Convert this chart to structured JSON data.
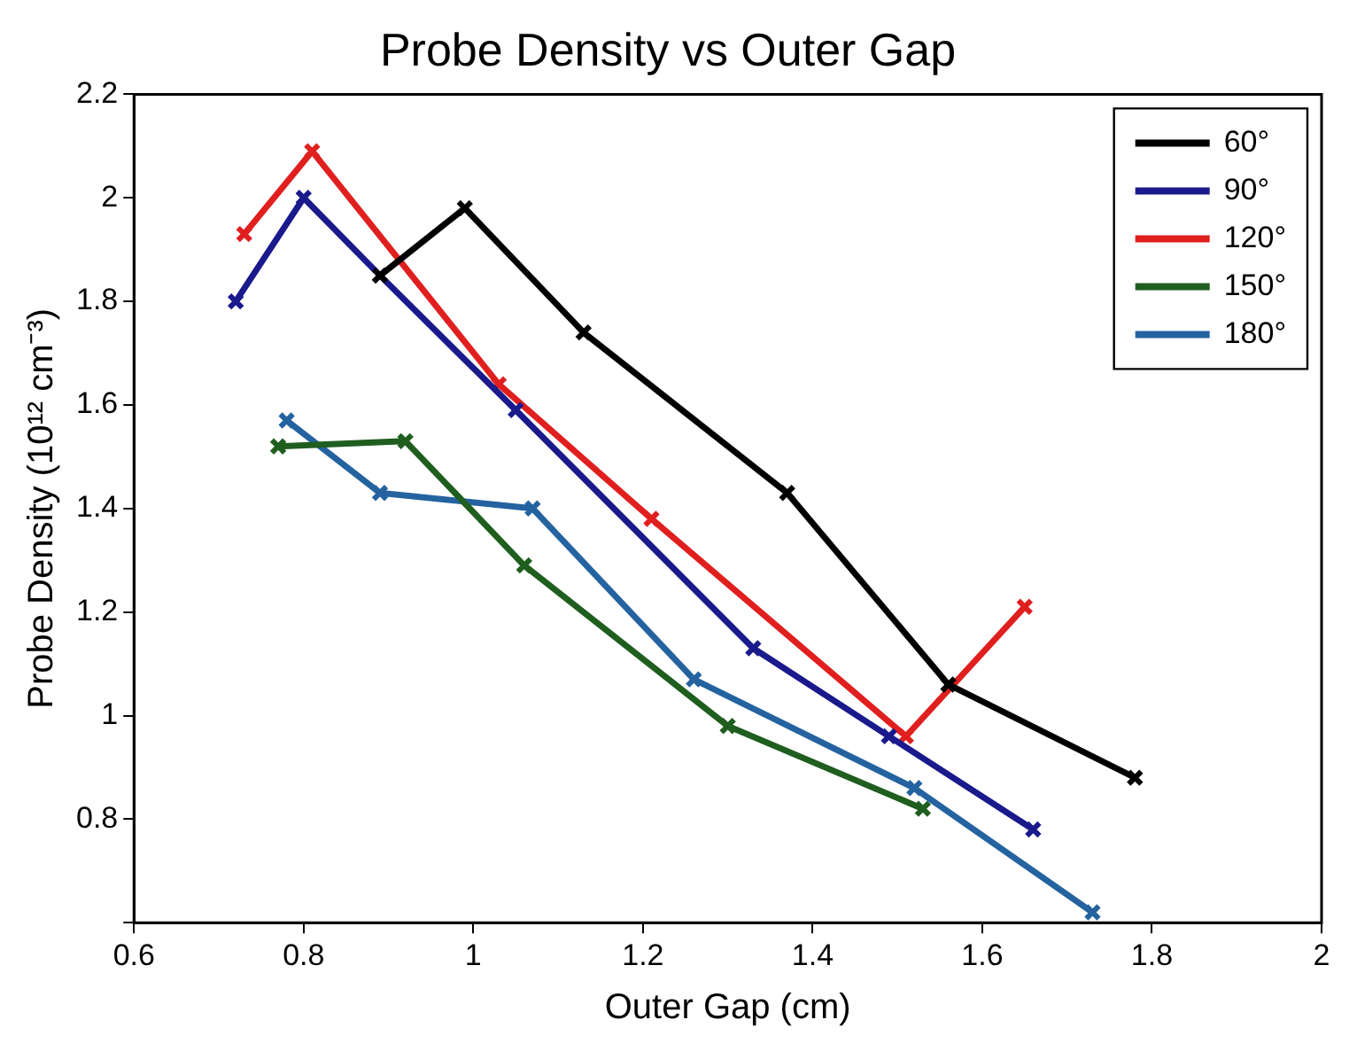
{
  "chart_data": {
    "type": "line",
    "title": "Probe Density vs Outer Gap",
    "xlabel": "Outer Gap (cm)",
    "ylabel": "Probe Density (10¹² cm⁻³)",
    "xlim": [
      0.6,
      2
    ],
    "xticks": [
      0.6,
      0.8,
      1,
      1.2,
      1.4,
      1.6,
      1.8,
      2
    ],
    "ylim": [
      0.6,
      2.2
    ],
    "yticks": [
      {
        "value": 0.6,
        "label": null
      },
      0.8,
      1,
      1.2,
      1.4,
      1.6,
      1.8,
      2,
      2.2
    ],
    "grid": false,
    "legend": "top right",
    "marker": "cross",
    "line_style": "solid",
    "series": [
      {
        "name": "60°",
        "color": "#000000",
        "x": [
          0.89,
          0.99,
          1.13,
          1.37,
          1.56,
          1.78
        ],
        "values": [
          1.85,
          1.98,
          1.74,
          1.43,
          1.06,
          0.88
        ]
      },
      {
        "name": "90°",
        "color": "#1a1a8c",
        "x": [
          0.72,
          0.8,
          0.89,
          1.05,
          1.33,
          1.49,
          1.66
        ],
        "values": [
          1.8,
          2.0,
          1.85,
          1.59,
          1.13,
          0.96,
          0.78
        ]
      },
      {
        "name": "120°",
        "color": "#e01f1f",
        "x": [
          0.73,
          0.81,
          1.03,
          1.21,
          1.51,
          1.65
        ],
        "values": [
          1.93,
          2.09,
          1.64,
          1.38,
          0.96,
          1.21
        ]
      },
      {
        "name": "150°",
        "color": "#1f5e1f",
        "x": [
          0.77,
          0.92,
          1.06,
          1.3,
          1.53
        ],
        "values": [
          1.52,
          1.53,
          1.29,
          0.98,
          0.82
        ]
      },
      {
        "name": "180°",
        "color": "#2463a0",
        "x": [
          0.78,
          0.89,
          1.07,
          1.26,
          1.52,
          1.73
        ],
        "values": [
          1.57,
          1.43,
          1.4,
          1.07,
          0.86,
          0.62
        ]
      }
    ]
  }
}
